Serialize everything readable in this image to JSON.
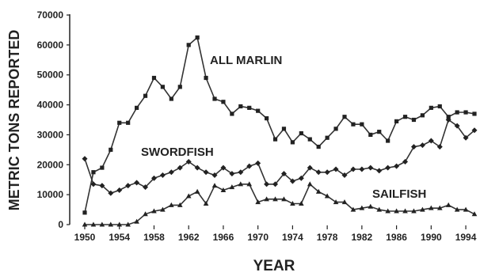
{
  "chart_data": {
    "type": "line",
    "xlabel": "YEAR",
    "ylabel": "METRIC TONS REPORTED",
    "ylim": [
      0,
      70000
    ],
    "yticks": [
      0,
      10000,
      20000,
      30000,
      40000,
      50000,
      60000,
      70000
    ],
    "ytick_labels": [
      "0",
      "10000",
      "20000",
      "30000",
      "40000",
      "50000",
      "60000",
      "70000"
    ],
    "xlim": [
      1950,
      1995
    ],
    "xticks": [
      1950,
      1954,
      1958,
      1962,
      1966,
      1970,
      1974,
      1978,
      1982,
      1986,
      1990,
      1994
    ],
    "xtick_labels": [
      "1950",
      "1954",
      "1958",
      "1962",
      "1966",
      "1970",
      "1974",
      "1978",
      "1982",
      "1986",
      "1990",
      "1994"
    ],
    "x": [
      1950,
      1951,
      1952,
      1953,
      1954,
      1955,
      1956,
      1957,
      1958,
      1959,
      1960,
      1961,
      1962,
      1963,
      1964,
      1965,
      1966,
      1967,
      1968,
      1969,
      1970,
      1971,
      1972,
      1973,
      1974,
      1975,
      1976,
      1977,
      1978,
      1979,
      1980,
      1981,
      1982,
      1983,
      1984,
      1985,
      1986,
      1987,
      1988,
      1989,
      1990,
      1991,
      1992,
      1993,
      1994,
      1995
    ],
    "series": [
      {
        "name": "ALL MARLIN",
        "marker": "square",
        "values": [
          4000,
          17500,
          19000,
          25000,
          34000,
          34000,
          39000,
          43000,
          49000,
          46000,
          42000,
          46000,
          60000,
          62500,
          49000,
          42000,
          41000,
          37000,
          39500,
          39000,
          38000,
          35500,
          28500,
          32000,
          27500,
          30500,
          28500,
          26000,
          29000,
          32000,
          36000,
          33500,
          33500,
          30000,
          31000,
          28000,
          34500,
          36000,
          35000,
          36500,
          39000,
          39500,
          36000,
          37500,
          37500,
          37000
        ]
      },
      {
        "name": "SWORDFISH",
        "marker": "diamond",
        "values": [
          22000,
          13500,
          13000,
          10500,
          11500,
          13000,
          14000,
          12500,
          15500,
          16500,
          17500,
          19000,
          21000,
          19000,
          17500,
          16500,
          19000,
          17000,
          17500,
          19500,
          20500,
          13500,
          13500,
          17000,
          14500,
          15500,
          19000,
          17500,
          17500,
          18500,
          16500,
          18500,
          18500,
          19000,
          18000,
          19000,
          19500,
          21000,
          26000,
          26500,
          28000,
          26000,
          35000,
          33000,
          29000,
          31500
        ]
      },
      {
        "name": "SAILFISH",
        "marker": "triangle",
        "values": [
          0,
          0,
          0,
          0,
          0,
          0,
          1000,
          3500,
          4500,
          5000,
          6500,
          6500,
          9500,
          11000,
          7000,
          13000,
          11500,
          12500,
          13500,
          13500,
          7500,
          8500,
          8500,
          8500,
          7000,
          7000,
          13500,
          11000,
          9500,
          7500,
          7500,
          5000,
          5500,
          6000,
          5000,
          4500,
          4500,
          4500,
          4500,
          5000,
          5500,
          5500,
          6500,
          5000,
          5000,
          3500
        ]
      }
    ],
    "series_labels": [
      "ALL MARLIN",
      "SWORDFISH",
      "SAILFISH"
    ],
    "grid": false,
    "legend": "none"
  }
}
